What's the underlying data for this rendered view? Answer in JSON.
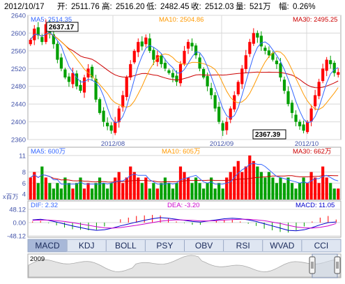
{
  "header": {
    "date": "2012/10/17",
    "open_label": "开:",
    "open": "2511.76",
    "high_label": "高:",
    "high": "2516.20",
    "low_label": "低:",
    "low": "2482.45",
    "close_label": "收:",
    "close": "2512.03",
    "volume_label": "量:",
    "volume": "521万",
    "change_label": "幅:",
    "change": "0.26%"
  },
  "price_panel": {
    "ma5_label": "MA5: 2514.35",
    "ma10_label": "MA10: 2504.86",
    "ma30_label": "MA30: 2495.25",
    "ylim": [
      2360,
      2640
    ],
    "yticks": [
      "2640",
      "2600",
      "2560",
      "2520",
      "2480",
      "2440",
      "2400",
      "2360"
    ],
    "xticks": [
      "2012/08",
      "2012/09",
      "2012/10"
    ],
    "annotation_high": "2637.17",
    "annotation_low": "2367.39"
  },
  "volume_panel": {
    "ma5_label": "MA5: 600万",
    "ma10_label": "MA10: 605万",
    "ma30_label": "MA30: 662万",
    "unit_label": "x百万",
    "yticks": [
      "11",
      "8",
      "6",
      "4"
    ],
    "ylim": [
      3,
      12.5
    ]
  },
  "macd_panel": {
    "dif_label": "DIF: 2.32",
    "dea_label": "DEA: -3.20",
    "macd_label": "MACD: 11.05",
    "yticks": [
      "48.12",
      "0.00",
      "-48.12"
    ],
    "ylim": [
      -48.12,
      48.12
    ]
  },
  "tabs": [
    "MACD",
    "KDJ",
    "BOLL",
    "PSY",
    "OBV",
    "RSI",
    "WVAD",
    "CCI"
  ],
  "active_tab": "MACD",
  "navigator": {
    "year_label": "2009"
  },
  "colors": {
    "up": "#ff0000",
    "down": "#00a000",
    "ma5": "#3366ff",
    "ma10": "#ff9900",
    "ma30": "#cc0000",
    "grid": "#d8d8d8",
    "axis_text": "#4455aa",
    "tab_active": "#a8b8d8",
    "tab_bg": "#dfe6f2"
  },
  "chart_data": [
    {
      "type": "candlestick",
      "title": "",
      "x_range": [
        "2012-07",
        "2012-10-17"
      ],
      "ylim": [
        2360,
        2640
      ],
      "highlight_high": 2637.17,
      "highlight_low": 2367.39,
      "close": [
        2585,
        2610,
        2595,
        2580,
        2620,
        2600,
        2575,
        2540,
        2520,
        2500,
        2490,
        2510,
        2480,
        2470,
        2500,
        2520,
        2500,
        2450,
        2420,
        2400,
        2390,
        2380,
        2400,
        2430,
        2460,
        2500,
        2530,
        2560,
        2580,
        2570,
        2590,
        2560,
        2540,
        2550,
        2530,
        2520,
        2510,
        2500,
        2490,
        2530,
        2560,
        2580,
        2570,
        2550,
        2520,
        2500,
        2480,
        2460,
        2430,
        2400,
        2380,
        2400,
        2430,
        2460,
        2490,
        2520,
        2550,
        2580,
        2600,
        2590,
        2570,
        2560,
        2550,
        2540,
        2530,
        2500,
        2470,
        2440,
        2420,
        2400,
        2390,
        2380,
        2400,
        2430,
        2460,
        2490,
        2520,
        2540,
        2530,
        2510,
        2512
      ]
    },
    {
      "type": "bar",
      "title": "",
      "ylabel": "x百万",
      "ylim": [
        3,
        12.5
      ],
      "values": [
        7,
        8,
        6,
        9,
        7,
        6,
        5,
        6,
        5,
        7,
        6,
        5,
        6,
        7,
        5,
        6,
        5,
        6,
        7,
        6,
        5,
        6,
        7,
        8,
        6,
        7,
        9,
        8,
        7,
        6,
        7,
        5,
        6,
        5,
        6,
        7,
        6,
        5,
        6,
        9,
        8,
        7,
        6,
        7,
        6,
        5,
        6,
        7,
        5,
        6,
        5,
        7,
        8,
        9,
        10,
        8,
        9,
        11,
        10,
        9,
        8,
        7,
        8,
        7,
        6,
        7,
        6,
        7,
        6,
        5,
        6,
        7,
        6,
        8,
        7,
        6,
        9,
        7,
        6,
        5,
        5
      ]
    },
    {
      "type": "line",
      "title": "",
      "ylim": [
        -48.12,
        48.12
      ],
      "series": [
        {
          "name": "DIF",
          "values": [
            10,
            12,
            8,
            2,
            -5,
            -12,
            -18,
            -24,
            -28,
            -26,
            -20,
            -12,
            -5,
            2,
            8,
            14,
            18,
            16,
            12,
            8,
            4,
            2,
            6,
            10,
            14,
            16,
            14,
            10,
            4,
            -4,
            -12,
            -20,
            -28,
            -30,
            -26,
            -18,
            -8,
            0,
            2.32
          ]
        },
        {
          "name": "DEA",
          "values": [
            8,
            9,
            9,
            7,
            4,
            0,
            -5,
            -10,
            -15,
            -19,
            -20,
            -18,
            -14,
            -10,
            -5,
            0,
            5,
            8,
            10,
            9,
            8,
            6,
            6,
            7,
            9,
            11,
            12,
            12,
            10,
            7,
            2,
            -3,
            -10,
            -16,
            -19,
            -20,
            -17,
            -12,
            -3.2
          ]
        }
      ],
      "histogram": [
        4,
        6,
        -2,
        -10,
        -18,
        -24,
        -26,
        -28,
        -26,
        -14,
        0,
        12,
        18,
        24,
        26,
        28,
        26,
        16,
        4,
        -2,
        -8,
        -8,
        0,
        6,
        10,
        10,
        4,
        -4,
        -12,
        -22,
        -28,
        -34,
        -36,
        -28,
        -14,
        4,
        18,
        24,
        11.05
      ]
    }
  ]
}
